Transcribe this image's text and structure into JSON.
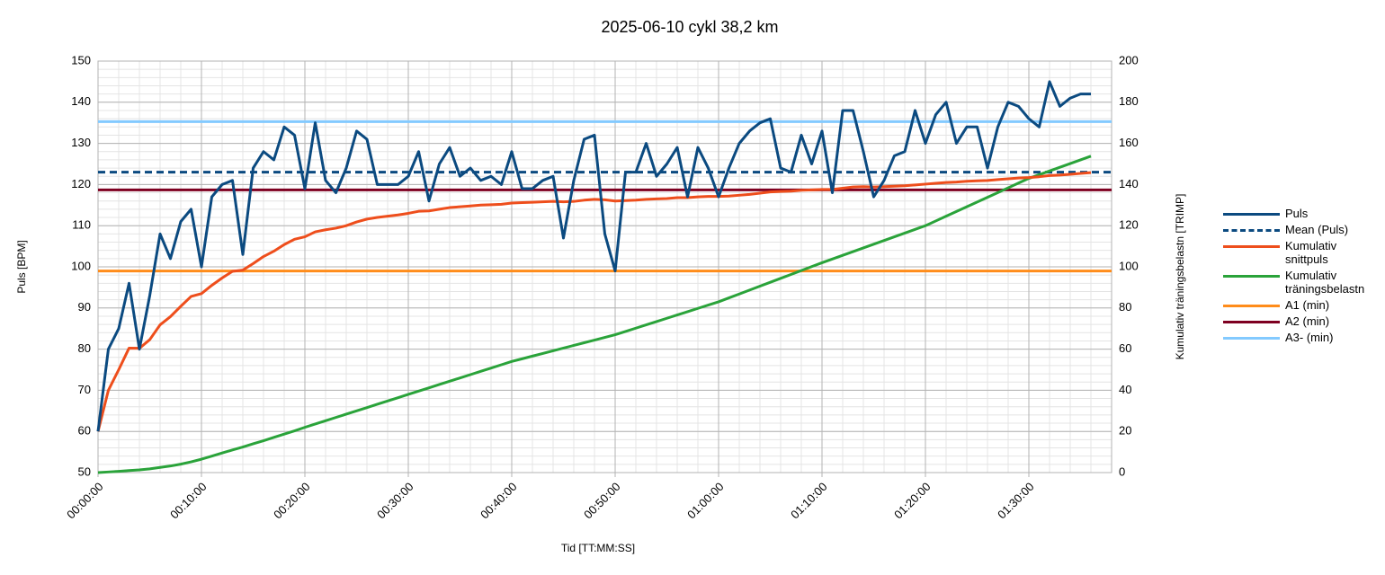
{
  "chart_data": {
    "type": "line",
    "title": "2025-06-10 cykl 38,2 km",
    "xlabel": "Tid [TT:MM:SS]",
    "ylabel": "Puls [BPM]",
    "y2label": "Kumulativ träningsbelastn [TRIMP]",
    "x": [
      0,
      1,
      2,
      3,
      4,
      5,
      6,
      7,
      8,
      9,
      10,
      11,
      12,
      13,
      14,
      15,
      16,
      17,
      18,
      19,
      20,
      21,
      22,
      23,
      24,
      25,
      26,
      27,
      28,
      29,
      30,
      31,
      32,
      33,
      34,
      35,
      36,
      37,
      38,
      39,
      40,
      41,
      42,
      43,
      44,
      45,
      46,
      47,
      48,
      49,
      50,
      51,
      52,
      53,
      54,
      55,
      56,
      57,
      58,
      59,
      60,
      61,
      62,
      63,
      64,
      65,
      66,
      67,
      68,
      69,
      70,
      71,
      72,
      73,
      74,
      75,
      76,
      77,
      78,
      79,
      80,
      81,
      82,
      83,
      84,
      85,
      86,
      87,
      88,
      89,
      90,
      91,
      92,
      93,
      94,
      95,
      96
    ],
    "xlim": [
      0,
      98
    ],
    "xticks": [
      {
        "value": 0,
        "label": "00:00:00"
      },
      {
        "value": 10,
        "label": "00:10:00"
      },
      {
        "value": 20,
        "label": "00:20:00"
      },
      {
        "value": 30,
        "label": "00:30:00"
      },
      {
        "value": 40,
        "label": "00:40:00"
      },
      {
        "value": 50,
        "label": "00:50:00"
      },
      {
        "value": 60,
        "label": "01:00:00"
      },
      {
        "value": 70,
        "label": "01:10:00"
      },
      {
        "value": 80,
        "label": "01:20:00"
      },
      {
        "value": 90,
        "label": "01:30:00"
      }
    ],
    "ylim": [
      50,
      150
    ],
    "yticks": [
      50,
      60,
      70,
      80,
      90,
      100,
      110,
      120,
      130,
      140,
      150
    ],
    "y2lim": [
      0,
      200
    ],
    "y2ticks": [
      0,
      20,
      40,
      60,
      80,
      100,
      120,
      140,
      160,
      180,
      200
    ],
    "grid": true,
    "legend": "right",
    "series": [
      {
        "name": "Puls",
        "color": "#0b4a80",
        "values": [
          60,
          80,
          85,
          96,
          80,
          93,
          108,
          102,
          111,
          114,
          100,
          117,
          120,
          121,
          103,
          124,
          128,
          126,
          134,
          132,
          119,
          135,
          121,
          118,
          124,
          133,
          131,
          120,
          120,
          120,
          122,
          128,
          116,
          125,
          129,
          122,
          124,
          121,
          122,
          120,
          128,
          119,
          119,
          121,
          122,
          107,
          121,
          131,
          132,
          108,
          99,
          123,
          123,
          130,
          122,
          125,
          129,
          117,
          129,
          124,
          117,
          124,
          130,
          133,
          135,
          136,
          124,
          123,
          132,
          125,
          133,
          118,
          138,
          138,
          128,
          117,
          121,
          127,
          128,
          138,
          130,
          137,
          140,
          130,
          134,
          134,
          124,
          134,
          140,
          139,
          136,
          134,
          145,
          139,
          141,
          142,
          142
        ]
      },
      {
        "name": "Mean (Puls)",
        "color": "#0b4a80",
        "value": 123,
        "dash": true
      },
      {
        "name": "Kumulativ snittpuls",
        "color": "#ee4e1c",
        "values": [
          60,
          70,
          75,
          80.25,
          80.2,
          82.3,
          85.9,
          87.9,
          90.4,
          92.8,
          93.5,
          95.5,
          97.3,
          98.9,
          99.2,
          100.8,
          102.5,
          103.8,
          105.4,
          106.7,
          107.3,
          108.5,
          109,
          109.4,
          110,
          110.9,
          111.6,
          112,
          112.3,
          112.6,
          113,
          113.5,
          113.6,
          114,
          114.4,
          114.6,
          114.8,
          115,
          115.1,
          115.2,
          115.5,
          115.6,
          115.7,
          115.8,
          115.9,
          115.8,
          115.9,
          116.2,
          116.4,
          116.3,
          116,
          116.1,
          116.2,
          116.4,
          116.5,
          116.6,
          116.8,
          116.8,
          117,
          117.1,
          117.1,
          117.2,
          117.4,
          117.6,
          117.9,
          118.2,
          118.3,
          118.4,
          118.6,
          118.7,
          118.8,
          118.8,
          119.1,
          119.4,
          119.5,
          119.4,
          119.5,
          119.6,
          119.7,
          119.9,
          120.1,
          120.3,
          120.5,
          120.6,
          120.8,
          120.9,
          121,
          121.2,
          121.4,
          121.6,
          121.7,
          121.9,
          122.2,
          122.3,
          122.5,
          122.7,
          122.9
        ]
      },
      {
        "name": "Kumulativ träningsbelastn",
        "color": "#2aa33a",
        "axis": "y2",
        "values": [
          0,
          0.3,
          0.6,
          1,
          1.3,
          1.8,
          2.5,
          3.2,
          4.1,
          5.2,
          6.5,
          8,
          9.5,
          11,
          12.4,
          14,
          15.5,
          17.1,
          18.7,
          20.3,
          22,
          23.6,
          25.2,
          26.8,
          28.4,
          30,
          31.6,
          33.2,
          34.8,
          36.4,
          38,
          39.6,
          41.2,
          42.8,
          44.4,
          46,
          47.6,
          49.2,
          50.8,
          52.4,
          54,
          55.3,
          56.6,
          57.9,
          59.2,
          60.5,
          61.8,
          63.1,
          64.4,
          65.7,
          67,
          68.6,
          70.2,
          71.8,
          73.4,
          75,
          76.6,
          78.2,
          79.8,
          81.4,
          83,
          84.9,
          86.8,
          88.7,
          90.6,
          92.5,
          94.4,
          96.3,
          98.2,
          100.1,
          102,
          103.8,
          105.6,
          107.4,
          109.2,
          111,
          112.8,
          114.6,
          116.4,
          118.2,
          120,
          122.3,
          124.6,
          126.9,
          129.2,
          131.5,
          133.8,
          136.1,
          138.4,
          140.7,
          143,
          144.8,
          146.6,
          148.4,
          150.2,
          152,
          153.8
        ]
      },
      {
        "name": "A1 (min)",
        "color": "#ff8c1a",
        "value": 99
      },
      {
        "name": "A2 (min)",
        "color": "#7e0021",
        "value": 118.7
      },
      {
        "name": "A3- (min)",
        "color": "#83caff",
        "value": 135.3
      }
    ]
  }
}
